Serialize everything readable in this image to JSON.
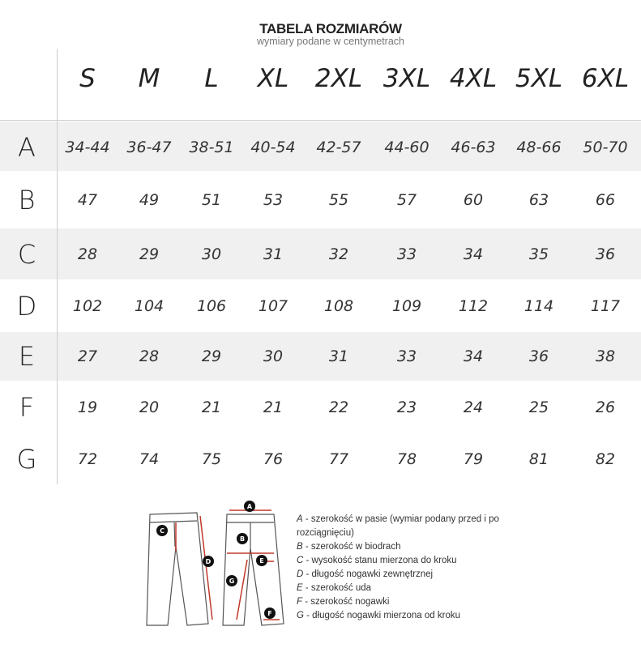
{
  "title": "TABELA ROZMIARÓW",
  "subtitle": "wymiary podane w centymetrach",
  "sizes": [
    "S",
    "M",
    "L",
    "XL",
    "2XL",
    "3XL",
    "4XL",
    "5XL",
    "6XL"
  ],
  "rows": [
    {
      "label": "A",
      "values": [
        "34-44",
        "36-47",
        "38-51",
        "40-54",
        "42-57",
        "44-60",
        "46-63",
        "48-66",
        "50-70"
      ]
    },
    {
      "label": "B",
      "values": [
        "47",
        "49",
        "51",
        "53",
        "55",
        "57",
        "60",
        "63",
        "66"
      ]
    },
    {
      "label": "C",
      "values": [
        "28",
        "29",
        "30",
        "31",
        "32",
        "33",
        "34",
        "35",
        "36"
      ]
    },
    {
      "label": "D",
      "values": [
        "102",
        "104",
        "106",
        "107",
        "108",
        "109",
        "112",
        "114",
        "117"
      ]
    },
    {
      "label": "E",
      "values": [
        "27",
        "28",
        "29",
        "30",
        "31",
        "33",
        "34",
        "36",
        "38"
      ]
    },
    {
      "label": "F",
      "values": [
        "19",
        "20",
        "21",
        "21",
        "22",
        "23",
        "24",
        "25",
        "26"
      ]
    },
    {
      "label": "G",
      "values": [
        "72",
        "74",
        "75",
        "76",
        "77",
        "78",
        "79",
        "81",
        "82"
      ]
    }
  ],
  "legend": [
    {
      "key": "A",
      "text": " - szerokość w pasie (wymiar podany przed i po"
    },
    {
      "key": "",
      "text": "rozciągnięciu)"
    },
    {
      "key": "B",
      "text": " - szerokość w biodrach"
    },
    {
      "key": "C",
      "text": " - wysokość stanu mierzona do kroku"
    },
    {
      "key": "D",
      "text": " - długość nogawki zewnętrznej"
    },
    {
      "key": "E",
      "text": " - szerokość uda"
    },
    {
      "key": "F",
      "text": " - szerokość nogawki"
    },
    {
      "key": "G",
      "text": " - długość nogawki mierzona od kroku"
    }
  ],
  "colors": {
    "band": "#f0f0f0",
    "arrow": "#c0392b",
    "line": "#cccccc"
  }
}
